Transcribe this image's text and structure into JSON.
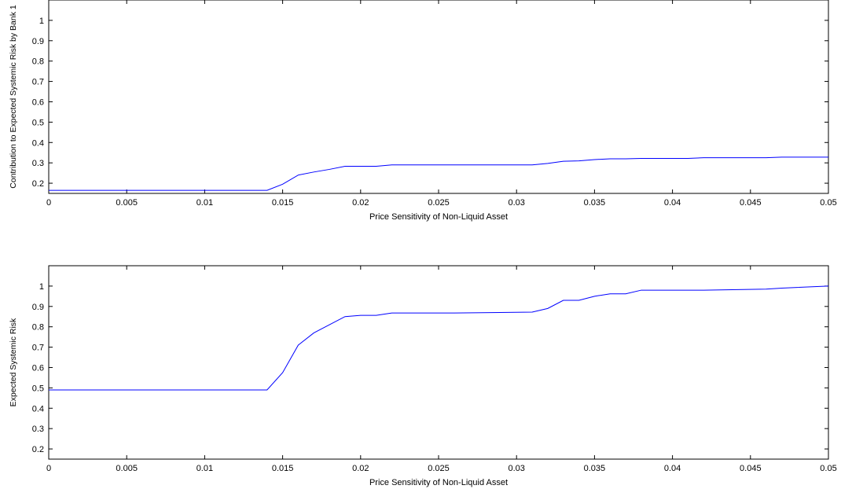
{
  "chart_data": [
    {
      "type": "line",
      "xlabel": "Price Sensitivity of Non-Liquid Asset",
      "ylabel": "Contribution to Expected Systemic Risk by Bank 1",
      "xlim": [
        0,
        0.05
      ],
      "ylim": [
        0.15,
        1.1
      ],
      "xticks": [
        "0",
        "0.005",
        "0.01",
        "0.015",
        "0.02",
        "0.025",
        "0.03",
        "0.035",
        "0.04",
        "0.045",
        "0.05"
      ],
      "yticks": [
        "0.2",
        "0.3",
        "0.4",
        "0.5",
        "0.6",
        "0.7",
        "0.8",
        "0.9",
        "1"
      ],
      "grid": false,
      "line_color": "#0000ff",
      "series": [
        {
          "x": [
            0,
            0.014,
            0.015,
            0.016,
            0.017,
            0.018,
            0.019,
            0.02,
            0.021,
            0.022,
            0.031,
            0.032,
            0.033,
            0.034,
            0.035,
            0.036,
            0.037,
            0.038,
            0.041,
            0.042,
            0.046,
            0.047,
            0.05
          ],
          "y": [
            0.165,
            0.165,
            0.195,
            0.24,
            0.255,
            0.268,
            0.283,
            0.283,
            0.283,
            0.29,
            0.29,
            0.297,
            0.308,
            0.31,
            0.316,
            0.32,
            0.32,
            0.322,
            0.322,
            0.325,
            0.325,
            0.328,
            0.328
          ]
        }
      ]
    },
    {
      "type": "line",
      "xlabel": "Price Sensitivity of Non-Liquid Asset",
      "ylabel": "Expected Systemic Risk",
      "xlim": [
        0,
        0.05
      ],
      "ylim": [
        0.15,
        1.1
      ],
      "xticks": [
        "0",
        "0.005",
        "0.01",
        "0.015",
        "0.02",
        "0.025",
        "0.03",
        "0.035",
        "0.04",
        "0.045",
        "0.05"
      ],
      "yticks": [
        "0.2",
        "0.3",
        "0.4",
        "0.5",
        "0.6",
        "0.7",
        "0.8",
        "0.9",
        "1"
      ],
      "grid": false,
      "line_color": "#0000ff",
      "series": [
        {
          "x": [
            0,
            0.014,
            0.015,
            0.016,
            0.017,
            0.018,
            0.019,
            0.02,
            0.021,
            0.022,
            0.026,
            0.031,
            0.032,
            0.033,
            0.034,
            0.035,
            0.036,
            0.037,
            0.038,
            0.042,
            0.046,
            0.047,
            0.05
          ],
          "y": [
            0.49,
            0.49,
            0.575,
            0.71,
            0.77,
            0.81,
            0.85,
            0.856,
            0.856,
            0.868,
            0.868,
            0.872,
            0.89,
            0.93,
            0.93,
            0.95,
            0.962,
            0.962,
            0.98,
            0.98,
            0.985,
            0.99,
            1.0
          ]
        }
      ]
    }
  ]
}
